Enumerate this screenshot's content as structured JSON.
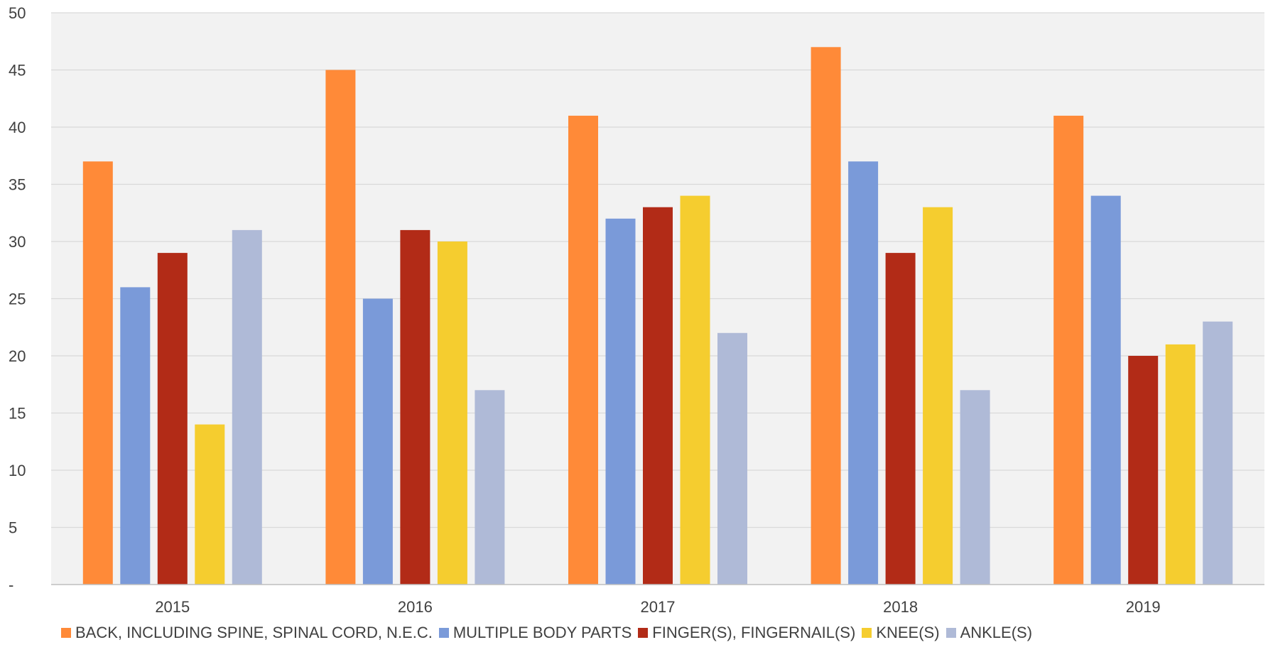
{
  "chart_data": {
    "type": "bar",
    "title": "",
    "xlabel": "",
    "ylabel": "",
    "categories": [
      "2015",
      "2016",
      "2017",
      "2018",
      "2019"
    ],
    "ylim": [
      0,
      50
    ],
    "yticks": [
      "-",
      "5",
      "10",
      "15",
      "20",
      "25",
      "30",
      "35",
      "40",
      "45",
      "50"
    ],
    "grid": true,
    "legend_position": "bottom",
    "series": [
      {
        "name": "BACK, INCLUDING SPINE, SPINAL CORD, N.E.C.",
        "color": "#FF8A38",
        "values": [
          37,
          45,
          41,
          47,
          41
        ]
      },
      {
        "name": "MULTIPLE BODY PARTS",
        "color": "#7A9AD9",
        "values": [
          26,
          25,
          32,
          37,
          34
        ]
      },
      {
        "name": "FINGER(S), FINGERNAIL(S)",
        "color": "#B22B17",
        "values": [
          29,
          31,
          33,
          29,
          20
        ]
      },
      {
        "name": "KNEE(S)",
        "color": "#F5CD2F",
        "values": [
          14,
          30,
          34,
          33,
          21
        ]
      },
      {
        "name": "ANKLE(S)",
        "color": "#AFBAD7",
        "values": [
          31,
          17,
          22,
          17,
          23
        ]
      }
    ]
  }
}
